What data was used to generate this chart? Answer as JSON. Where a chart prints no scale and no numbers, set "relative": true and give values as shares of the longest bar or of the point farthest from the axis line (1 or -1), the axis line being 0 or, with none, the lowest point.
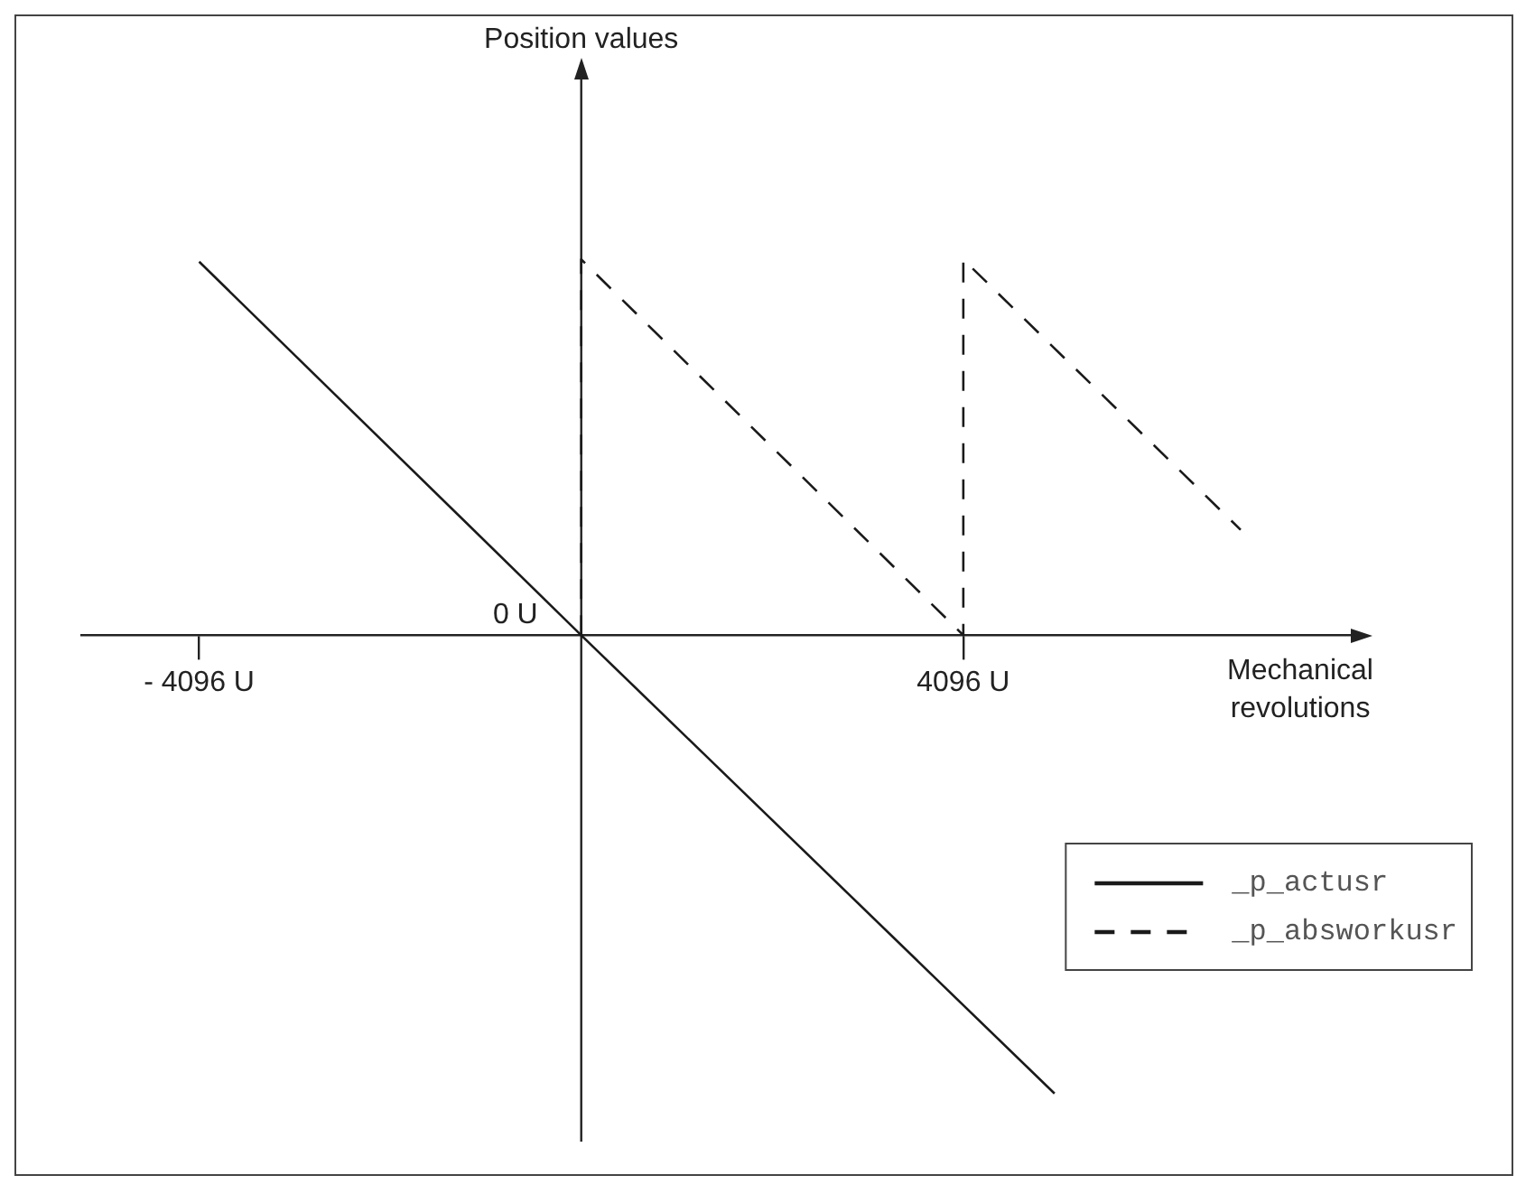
{
  "chart_data": {
    "type": "line",
    "relative": true,
    "xlabel": "Mechanical revolutions",
    "xlim": [
      -5360,
      8250
    ],
    "xticks": [
      {
        "value": -4096,
        "label": "- 4096 U"
      },
      {
        "value": 4096,
        "label": "4096 U"
      }
    ],
    "annotations": [
      "Position values",
      {
        "text": "0 U",
        "x": 0,
        "y": 0
      }
    ],
    "series": [
      {
        "name": "_p_actusr",
        "color": "#1a1a1a",
        "line_style": "solid",
        "x": [
          -4096,
          0,
          5074
        ],
        "values": [
          0.815,
          0,
          -1
        ]
      },
      {
        "name": "_p_absworkusr",
        "color": "#1a1a1a",
        "line_style": "dashed",
        "x": [
          0,
          0,
          4096,
          4096,
          7069
        ],
        "values": [
          0,
          0.82,
          0,
          0.82,
          0.23
        ]
      }
    ],
    "marker": "none",
    "legend": "bottom right"
  }
}
